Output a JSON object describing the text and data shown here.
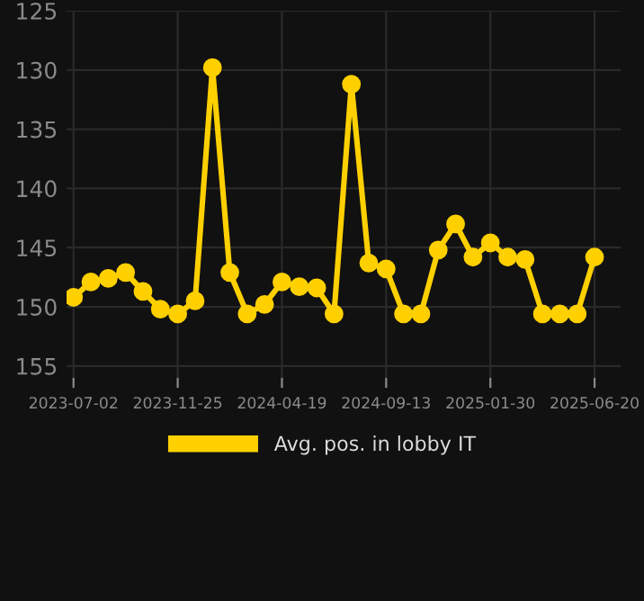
{
  "chart_data": {
    "type": "line",
    "categories": [
      "2023-07-02",
      null,
      null,
      null,
      null,
      null,
      "2023-11-25",
      null,
      null,
      null,
      null,
      null,
      "2024-04-19",
      null,
      null,
      null,
      null,
      null,
      "2024-09-13",
      null,
      null,
      null,
      null,
      null,
      "2025-01-30",
      null,
      null,
      null,
      null,
      null,
      "2025-06-20"
    ],
    "series": [
      {
        "name": "Avg. pos. in lobby IT",
        "color": "#ffd000",
        "values": [
          149.2,
          147.9,
          147.6,
          147.1,
          148.7,
          150.2,
          150.6,
          149.5,
          129.8,
          147.1,
          150.6,
          149.8,
          147.9,
          148.3,
          148.4,
          150.6,
          131.2,
          146.3,
          146.8,
          150.6,
          150.6,
          145.2,
          143.0,
          145.8,
          144.6,
          145.8,
          146.0,
          150.6,
          150.6,
          150.6,
          145.8
        ]
      }
    ],
    "ylim": [
      156,
      125
    ],
    "yticks": [
      125,
      130,
      135,
      140,
      145,
      150,
      155
    ],
    "grid": true,
    "legend": "bottom",
    "marker": "circle",
    "line_style": "solid"
  }
}
